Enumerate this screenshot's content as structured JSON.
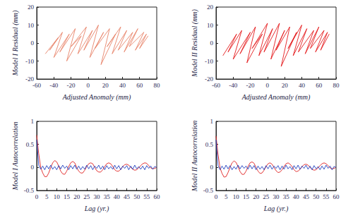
{
  "chart_data": [
    {
      "type": "line",
      "x_label": "Adjusted Anomaly (mm)",
      "y_label": "Model I Residual (mm)",
      "xlim": [
        -60,
        80
      ],
      "xticks": [
        -60,
        -40,
        -20,
        0,
        20,
        40,
        60,
        80
      ],
      "ylim": [
        -20,
        20
      ],
      "yticks": [
        -20,
        -10,
        0,
        10,
        20
      ],
      "grid": false,
      "x": [
        -50,
        -35,
        -45,
        -30,
        -40,
        -22,
        -33,
        -15,
        -25,
        -8,
        -20,
        -2,
        -12,
        5,
        -5,
        12,
        2,
        18,
        8,
        25,
        15,
        32,
        22,
        38,
        28,
        45,
        35,
        52,
        42,
        58,
        48,
        65,
        55,
        68,
        60,
        70
      ],
      "series": [
        {
          "color": "#e8836a",
          "values": [
            -6,
            3,
            -4,
            6,
            -8,
            5,
            -5,
            8,
            -10,
            4,
            -2,
            9,
            -6,
            7,
            -4,
            10,
            -8,
            6,
            -3,
            8,
            -12,
            5,
            -2,
            9,
            -6,
            7,
            -4,
            6,
            -5,
            8,
            -2,
            6,
            -4,
            5,
            -3,
            4
          ]
        }
      ]
    },
    {
      "type": "line",
      "x_label": "Adjusted Anomaly (mm)",
      "y_label": "Model II Residual (mm)",
      "xlim": [
        -60,
        80
      ],
      "xticks": [
        -60,
        -40,
        -20,
        0,
        20,
        40,
        60,
        80
      ],
      "ylim": [
        -20,
        20
      ],
      "yticks": [
        -20,
        -10,
        0,
        10,
        20
      ],
      "grid": false,
      "x": [
        -52,
        -36,
        -46,
        -30,
        -40,
        -20,
        -32,
        -14,
        -24,
        -6,
        -18,
        0,
        -10,
        6,
        -4,
        14,
        4,
        20,
        10,
        26,
        16,
        34,
        24,
        40,
        30,
        46,
        36,
        54,
        44,
        60,
        50,
        66,
        56,
        70,
        62,
        72
      ],
      "series": [
        {
          "color": "#e41a1c",
          "values": [
            -7,
            5,
            -5,
            7,
            -9,
            6,
            -6,
            9,
            -11,
            5,
            -3,
            11,
            -7,
            8,
            -5,
            11,
            -9,
            7,
            -4,
            9,
            -13,
            6,
            -3,
            10,
            -7,
            8,
            -5,
            7,
            -6,
            9,
            -3,
            7,
            -5,
            6,
            -4,
            5
          ]
        }
      ]
    },
    {
      "type": "line",
      "x_label": "Lag (yr.)",
      "y_label": "Model I Autocorrelation",
      "xlim": [
        0,
        60
      ],
      "xticks": [
        0,
        5,
        10,
        15,
        20,
        25,
        30,
        35,
        40,
        45,
        50,
        55,
        60
      ],
      "ylim": [
        -0.5,
        1
      ],
      "yticks": [
        -0.5,
        0,
        0.5,
        1
      ],
      "grid": false,
      "x": [
        0,
        1,
        2,
        3,
        4,
        5,
        6,
        7,
        8,
        9,
        10,
        11,
        12,
        13,
        14,
        15,
        16,
        17,
        18,
        19,
        20,
        21,
        22,
        23,
        24,
        25,
        26,
        27,
        28,
        29,
        30,
        31,
        32,
        33,
        34,
        35,
        36,
        37,
        38,
        39,
        40,
        41,
        42,
        43,
        44,
        45,
        46,
        47,
        48,
        49,
        50,
        51,
        52,
        53,
        54,
        55,
        56,
        57,
        58,
        59,
        60
      ],
      "series": [
        {
          "color": "#e02020",
          "values": [
            0.7,
            0.3,
            0.0,
            -0.12,
            -0.2,
            -0.2,
            -0.12,
            0.0,
            0.1,
            0.15,
            0.12,
            0.03,
            -0.08,
            -0.14,
            -0.15,
            -0.08,
            0.02,
            0.1,
            0.13,
            0.1,
            0.0,
            -0.08,
            -0.12,
            -0.12,
            -0.06,
            0.02,
            0.08,
            0.1,
            0.08,
            0.0,
            -0.07,
            -0.1,
            -0.1,
            -0.05,
            0.02,
            0.08,
            0.1,
            0.08,
            0.02,
            -0.05,
            -0.08,
            -0.08,
            -0.04,
            0.02,
            0.06,
            0.07,
            0.05,
            0.0,
            -0.04,
            -0.06,
            -0.05,
            -0.01,
            0.04,
            0.08,
            0.1,
            0.09,
            0.04,
            -0.01,
            -0.03,
            -0.02,
            0.0
          ]
        },
        {
          "color": "#1f3fbf",
          "values": [
            0.6,
            0.05,
            -0.04,
            0.03,
            -0.05,
            0.04,
            -0.03,
            0.05,
            -0.04,
            0.02,
            -0.05,
            0.04,
            -0.03,
            0.05,
            -0.02,
            0.03,
            -0.05,
            0.04,
            -0.03,
            0.05,
            -0.04,
            0.03,
            -0.05,
            0.02,
            -0.04,
            0.05,
            -0.03,
            0.04,
            -0.05,
            0.03,
            -0.02,
            0.05,
            -0.04,
            0.03,
            -0.05,
            0.04,
            -0.03,
            0.02,
            -0.04,
            0.05,
            -0.03,
            0.04,
            -0.05,
            0.03,
            -0.02,
            0.04,
            -0.05,
            0.03,
            -0.04,
            0.05,
            -0.03,
            0.02,
            -0.04,
            0.03,
            -0.05,
            0.04,
            -0.02,
            0.03,
            -0.04,
            0.02,
            0.0
          ]
        }
      ]
    },
    {
      "type": "line",
      "x_label": "Lag (yr.)",
      "y_label": "Model II Autocorrelation",
      "xlim": [
        0,
        60
      ],
      "xticks": [
        0,
        5,
        10,
        15,
        20,
        25,
        30,
        35,
        40,
        45,
        50,
        55,
        60
      ],
      "ylim": [
        -0.5,
        1
      ],
      "yticks": [
        -0.5,
        0,
        0.5,
        1
      ],
      "grid": false,
      "x": [
        0,
        1,
        2,
        3,
        4,
        5,
        6,
        7,
        8,
        9,
        10,
        11,
        12,
        13,
        14,
        15,
        16,
        17,
        18,
        19,
        20,
        21,
        22,
        23,
        24,
        25,
        26,
        27,
        28,
        29,
        30,
        31,
        32,
        33,
        34,
        35,
        36,
        37,
        38,
        39,
        40,
        41,
        42,
        43,
        44,
        45,
        46,
        47,
        48,
        49,
        50,
        51,
        52,
        53,
        54,
        55,
        56,
        57,
        58,
        59,
        60
      ],
      "series": [
        {
          "color": "#e02020",
          "values": [
            0.68,
            0.28,
            -0.01,
            -0.13,
            -0.21,
            -0.2,
            -0.11,
            0.0,
            0.1,
            0.14,
            0.11,
            0.02,
            -0.09,
            -0.15,
            -0.15,
            -0.08,
            0.02,
            0.1,
            0.12,
            0.09,
            0.0,
            -0.08,
            -0.13,
            -0.12,
            -0.06,
            0.02,
            0.08,
            0.1,
            0.07,
            0.0,
            -0.07,
            -0.11,
            -0.1,
            -0.05,
            0.02,
            0.08,
            0.1,
            0.07,
            0.02,
            -0.05,
            -0.09,
            -0.08,
            -0.04,
            0.02,
            0.06,
            0.07,
            0.05,
            0.0,
            -0.04,
            -0.06,
            -0.05,
            -0.01,
            0.04,
            0.08,
            0.1,
            0.08,
            0.04,
            -0.01,
            -0.03,
            -0.02,
            0.0
          ]
        },
        {
          "color": "#1f3fbf",
          "values": [
            0.6,
            0.04,
            -0.05,
            0.03,
            -0.04,
            0.05,
            -0.03,
            0.04,
            -0.05,
            0.02,
            -0.04,
            0.05,
            -0.03,
            0.04,
            -0.02,
            0.03,
            -0.04,
            0.05,
            -0.03,
            0.04,
            -0.05,
            0.03,
            -0.04,
            0.02,
            -0.05,
            0.04,
            -0.03,
            0.05,
            -0.04,
            0.03,
            -0.02,
            0.04,
            -0.05,
            0.03,
            -0.04,
            0.05,
            -0.03,
            0.02,
            -0.05,
            0.04,
            -0.03,
            0.05,
            -0.04,
            0.03,
            -0.02,
            0.05,
            -0.04,
            0.03,
            -0.05,
            0.04,
            -0.03,
            0.02,
            -0.05,
            0.03,
            -0.04,
            0.05,
            -0.02,
            0.03,
            -0.05,
            0.02,
            0.0
          ]
        }
      ]
    }
  ]
}
